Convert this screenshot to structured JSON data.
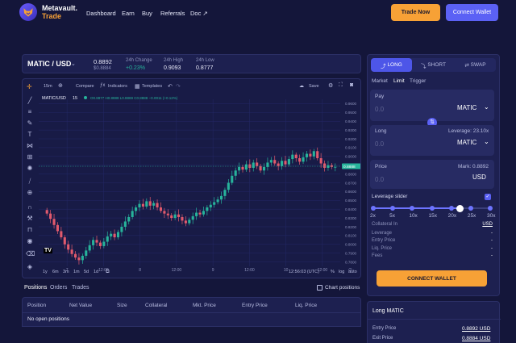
{
  "brand": {
    "name": "Metavault.",
    "sub": "Trade"
  },
  "nav": [
    "Dashboard",
    "Earn",
    "Buy",
    "Referrals",
    "Doc ↗"
  ],
  "header": {
    "trade_now": "Trade Now",
    "connect_wallet": "Connect Wallet"
  },
  "ticker": {
    "pair": "MATIC / USD",
    "price": "0.8892",
    "price_sub": "$0.8884",
    "change_label": "24h Change",
    "change": "+0.23%",
    "high_label": "24h High",
    "high": "0.9093",
    "low_label": "24h Low",
    "low": "0.8777"
  },
  "chart_toolbar": {
    "interval": "15m",
    "compare": "Compare",
    "indicators": "Indicators",
    "templates": "Templates",
    "save": "Save"
  },
  "chart_legend": {
    "symbol": "MATIC/USD",
    "interval": "15",
    "ohlc": "O0.8877 H0.8888 L0.8869 C0.8888 −0.0011 (+0.12%)"
  },
  "chart_data": {
    "type": "candlestick",
    "ylim": [
      0.775,
      0.965
    ],
    "y_ticks": [
      "0.9600",
      "0.9500",
      "0.9400",
      "0.9300",
      "0.9200",
      "0.9100",
      "0.9000",
      "0.8900",
      "0.8800",
      "0.8700",
      "0.8600",
      "0.8500",
      "0.8400",
      "0.8300",
      "0.8200",
      "0.8100",
      "0.8000",
      "0.7900",
      "0.7800"
    ],
    "last_price": "0.8888",
    "x_ticks": [
      "7",
      "12:00",
      "8",
      "12:00",
      "9",
      "12:00",
      "10",
      "12:00"
    ],
    "close": [
      0.835,
      0.829,
      0.822,
      0.815,
      0.808,
      0.8,
      0.794,
      0.789,
      0.785,
      0.782,
      0.787,
      0.793,
      0.799,
      0.805,
      0.802,
      0.798,
      0.803,
      0.809,
      0.812,
      0.808,
      0.814,
      0.82,
      0.826,
      0.831,
      0.838,
      0.842,
      0.846,
      0.843,
      0.849,
      0.844,
      0.847,
      0.842,
      0.838,
      0.835,
      0.833,
      0.83,
      0.834,
      0.831,
      0.827,
      0.824,
      0.828,
      0.832,
      0.836,
      0.834,
      0.838,
      0.842,
      0.845,
      0.848,
      0.851,
      0.855,
      0.862,
      0.87,
      0.878,
      0.884,
      0.888,
      0.885,
      0.891,
      0.887,
      0.893,
      0.889,
      0.884,
      0.888,
      0.893,
      0.896,
      0.892,
      0.889,
      0.895,
      0.891,
      0.897,
      0.902,
      0.898,
      0.894,
      0.899,
      0.903,
      0.9,
      0.906,
      0.898,
      0.892,
      0.887,
      0.89,
      0.888,
      0.888
    ],
    "timeframes": [
      "1y",
      "6m",
      "3m",
      "1m",
      "5d",
      "1d"
    ],
    "clock": "12:56:03 (UTC)",
    "scale_opts": [
      "%",
      "log",
      "auto"
    ]
  },
  "positions": {
    "tabs": [
      "Positions",
      "Orders",
      "Trades"
    ],
    "chart_positions": "Chart positions",
    "columns": [
      "Position",
      "Net Value",
      "Size",
      "Collateral",
      "Mkt. Price",
      "Entry Price",
      "Liq. Price"
    ],
    "empty": "No open positions"
  },
  "trade": {
    "modes": [
      "LONG",
      "SHORT",
      "SWAP"
    ],
    "order_types": [
      "Market",
      "Limit",
      "Trigger"
    ],
    "pay_label": "Pay",
    "pay_value": "0.0",
    "pay_token": "MATIC",
    "long_label": "Long",
    "leverage_text": "Leverage: 23.10x",
    "long_value": "0.0",
    "long_token": "MATIC",
    "price_label": "Price",
    "mark": "Mark: 0.8892",
    "price_value": "0.0",
    "price_unit": "USD",
    "leverage_slider": "Leverage slider",
    "leverage_marks": [
      "2x",
      "5x",
      "10x",
      "15x",
      "20x",
      "25x",
      "30x"
    ],
    "leverage_level": 0.74,
    "collateral_in": "Collateral In",
    "collateral_value": "USD",
    "leverage": "Leverage",
    "leverage_value": "-",
    "entry_price": "Entry Price",
    "entry_value": "-",
    "liq_price": "Liq. Price",
    "liq_value": "-",
    "fees": "Fees",
    "fees_value": "-",
    "connect_wallet": "CONNECT WALLET"
  },
  "long_info": {
    "title": "Long MATIC",
    "entry_label": "Entry Price",
    "entry": "0.8892 USD",
    "exit_label": "Exit Price",
    "exit": "0.8884 USD"
  },
  "colors": {
    "accent": "#5b61f5",
    "orange": "#f7a136",
    "up": "#27b39b",
    "down": "#e25a6d"
  }
}
